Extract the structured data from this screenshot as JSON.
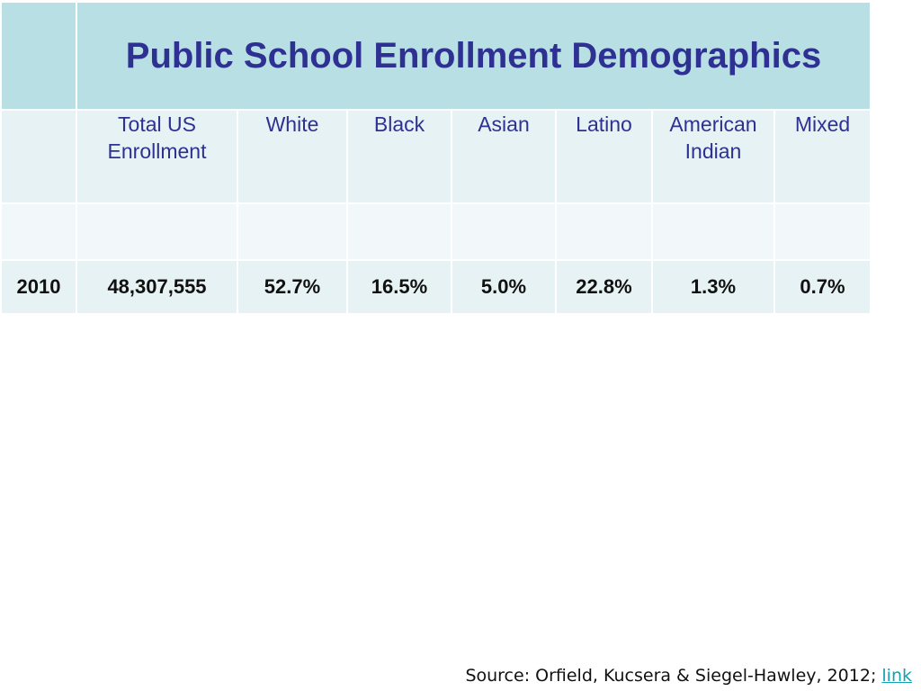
{
  "table": {
    "title": "Public School Enrollment Demographics",
    "headers": [
      "",
      "Total US Enrollment",
      "White",
      "Black",
      "Asian",
      "Latino",
      "American Indian",
      "Mixed"
    ],
    "rows": [
      {
        "year": "2010",
        "total": "48,307,555",
        "white": "52.7%",
        "black": "16.5%",
        "asian": "5.0%",
        "latino": "22.8%",
        "american_indian": "1.3%",
        "mixed": "0.7%"
      }
    ]
  },
  "footer": {
    "source_text": "Source: Orfield, Kucsera & Siegel-Hawley, 2012; ",
    "link_text": "link"
  },
  "colors": {
    "title_text": "#2e3192",
    "title_band": "#b8dfe3",
    "cell_bg": "#e7f2f4",
    "link": "#12a1b5"
  }
}
